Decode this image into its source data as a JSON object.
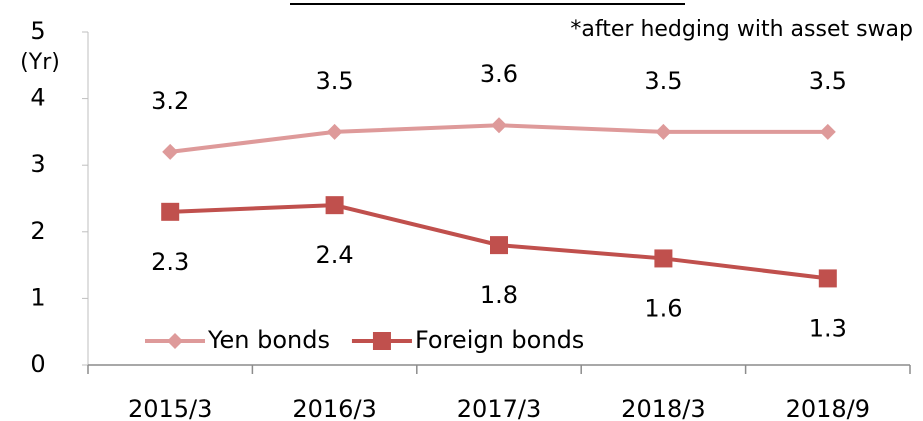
{
  "chart_data": {
    "type": "line",
    "annotation": "*after hedging with asset swap",
    "y_axis_label": "(Yr)",
    "categories": [
      "2015/3",
      "2016/3",
      "2017/3",
      "2018/3",
      "2018/9"
    ],
    "series": [
      {
        "name": "Yen bonds",
        "color": "#de9a9a",
        "marker": "diamond",
        "values": [
          3.2,
          3.5,
          3.6,
          3.5,
          3.5
        ]
      },
      {
        "name": "Foreign bonds",
        "color": "#c0504d",
        "marker": "square",
        "values": [
          2.3,
          2.4,
          1.8,
          1.6,
          1.3
        ]
      }
    ],
    "ylim": [
      0,
      5
    ],
    "yticks": [
      0,
      1,
      2,
      3,
      4,
      5
    ],
    "grid": false,
    "legend": "lower left"
  }
}
